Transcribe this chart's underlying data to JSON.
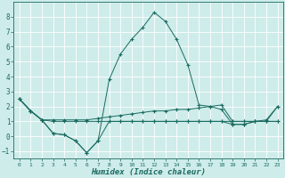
{
  "xlabel": "Humidex (Indice chaleur)",
  "bg_color": "#ceecea",
  "grid_color": "#ffffff",
  "line_color": "#1a6b60",
  "xlim": [
    -0.5,
    23.5
  ],
  "ylim": [
    -1.5,
    9.0
  ],
  "yticks": [
    -1,
    0,
    1,
    2,
    3,
    4,
    5,
    6,
    7,
    8
  ],
  "xticks": [
    0,
    1,
    2,
    3,
    4,
    5,
    6,
    7,
    8,
    9,
    10,
    11,
    12,
    13,
    14,
    15,
    16,
    17,
    18,
    19,
    20,
    21,
    22,
    23
  ],
  "series": {
    "main": {
      "x": [
        0,
        1,
        2,
        3,
        4,
        5,
        6,
        7,
        8,
        9,
        10,
        11,
        12,
        13,
        14,
        15,
        16,
        17,
        18,
        19,
        20,
        21,
        22,
        23
      ],
      "y": [
        2.5,
        1.7,
        1.1,
        0.2,
        0.1,
        -0.3,
        -1.1,
        -0.3,
        3.8,
        5.5,
        6.5,
        7.3,
        8.3,
        7.7,
        6.5,
        4.8,
        2.1,
        2.0,
        1.8,
        0.8,
        0.8,
        1.0,
        1.0,
        2.0
      ]
    },
    "line2": {
      "x": [
        0,
        1,
        2,
        3,
        4,
        5,
        6,
        7,
        8,
        9,
        10,
        11,
        12,
        13,
        14,
        15,
        16,
        17,
        18,
        19,
        20,
        21,
        22,
        23
      ],
      "y": [
        2.5,
        1.7,
        1.1,
        1.1,
        1.1,
        1.1,
        1.1,
        1.2,
        1.3,
        1.4,
        1.5,
        1.6,
        1.7,
        1.7,
        1.8,
        1.8,
        1.9,
        2.0,
        2.1,
        1.0,
        1.0,
        1.0,
        1.1,
        2.0
      ]
    },
    "line3": {
      "x": [
        0,
        1,
        2,
        3,
        4,
        5,
        6,
        7,
        8,
        9,
        10,
        11,
        12,
        13,
        14,
        15,
        16,
        17,
        18,
        19,
        20,
        21,
        22,
        23
      ],
      "y": [
        2.5,
        1.7,
        1.1,
        1.0,
        1.0,
        1.0,
        1.0,
        1.0,
        1.0,
        1.0,
        1.0,
        1.0,
        1.0,
        1.0,
        1.0,
        1.0,
        1.0,
        1.0,
        1.0,
        1.0,
        1.0,
        1.0,
        1.0,
        1.0
      ]
    },
    "line4": {
      "x": [
        0,
        1,
        2,
        3,
        4,
        5,
        6,
        7,
        8,
        9,
        10,
        11,
        12,
        13,
        14,
        15,
        16,
        17,
        18,
        19,
        20,
        21,
        22,
        23
      ],
      "y": [
        2.5,
        1.7,
        1.1,
        0.2,
        0.1,
        -0.3,
        -1.1,
        -0.3,
        1.0,
        1.0,
        1.0,
        1.0,
        1.0,
        1.0,
        1.0,
        1.0,
        1.0,
        1.0,
        1.0,
        0.8,
        0.8,
        1.0,
        1.0,
        1.0
      ]
    }
  }
}
